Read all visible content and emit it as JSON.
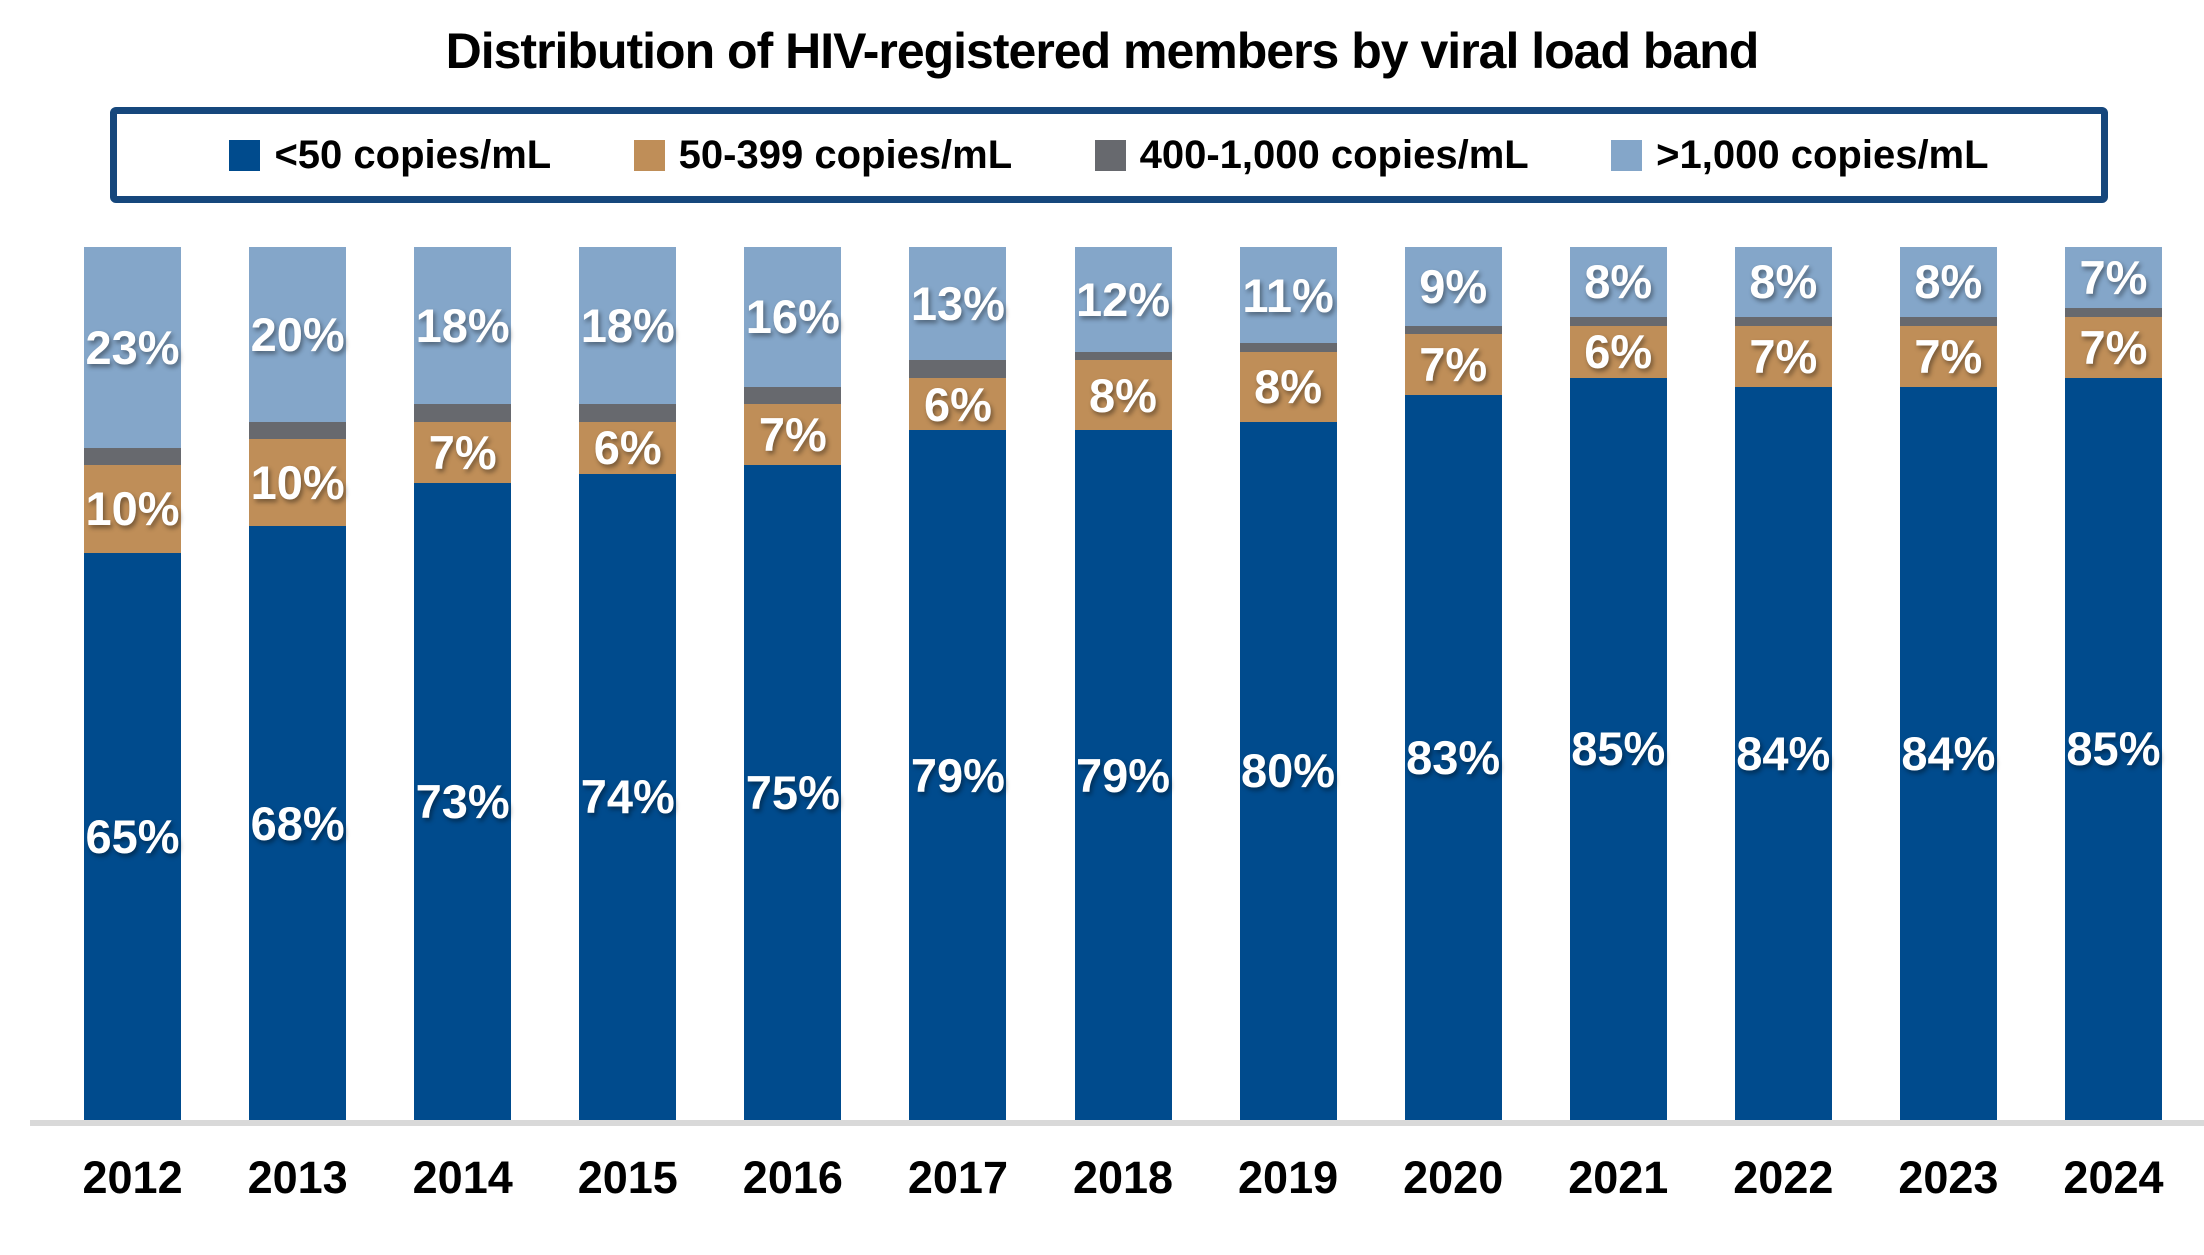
{
  "title": "Distribution of HIV-registered members by viral load band",
  "colors": {
    "dark_blue": "#004B8D",
    "tan": "#BF8E58",
    "gray": "#67696E",
    "light_blue": "#84A6C9",
    "legend_border": "#16477C",
    "axis_line": "#D9D9D9",
    "bar_label_text": "#FFFFFF",
    "text": "#000000"
  },
  "chart_data": {
    "type": "bar",
    "stacked": true,
    "percent_stack": true,
    "title": "Distribution of HIV-registered members by viral load band",
    "xlabel": "",
    "ylabel": "",
    "ylim": [
      0,
      100
    ],
    "grid": false,
    "legend_position": "top",
    "value_suffix": "%",
    "categories": [
      "2012",
      "2013",
      "2014",
      "2015",
      "2016",
      "2017",
      "2018",
      "2019",
      "2020",
      "2021",
      "2022",
      "2023",
      "2024"
    ],
    "series": [
      {
        "name": "<50 copies/mL",
        "color_key": "dark_blue",
        "color": "#004B8D",
        "show_labels": true,
        "values": [
          65,
          68,
          73,
          74,
          75,
          79,
          79,
          80,
          83,
          85,
          84,
          84,
          85
        ]
      },
      {
        "name": "50-399 copies/mL",
        "color_key": "tan",
        "color": "#BF8E58",
        "show_labels": true,
        "values": [
          10,
          10,
          7,
          6,
          7,
          6,
          8,
          8,
          7,
          6,
          7,
          7,
          7
        ]
      },
      {
        "name": "400-1,000 copies/mL",
        "color_key": "gray",
        "color": "#67696E",
        "show_labels": false,
        "values": [
          2,
          2,
          2,
          2,
          2,
          2,
          1,
          1,
          1,
          1,
          1,
          1,
          1
        ]
      },
      {
        "name": ">1,000 copies/mL",
        "color_key": "light_blue",
        "color": "#84A6C9",
        "show_labels": true,
        "values": [
          23,
          20,
          18,
          18,
          16,
          13,
          12,
          11,
          9,
          8,
          8,
          8,
          7
        ]
      }
    ]
  }
}
